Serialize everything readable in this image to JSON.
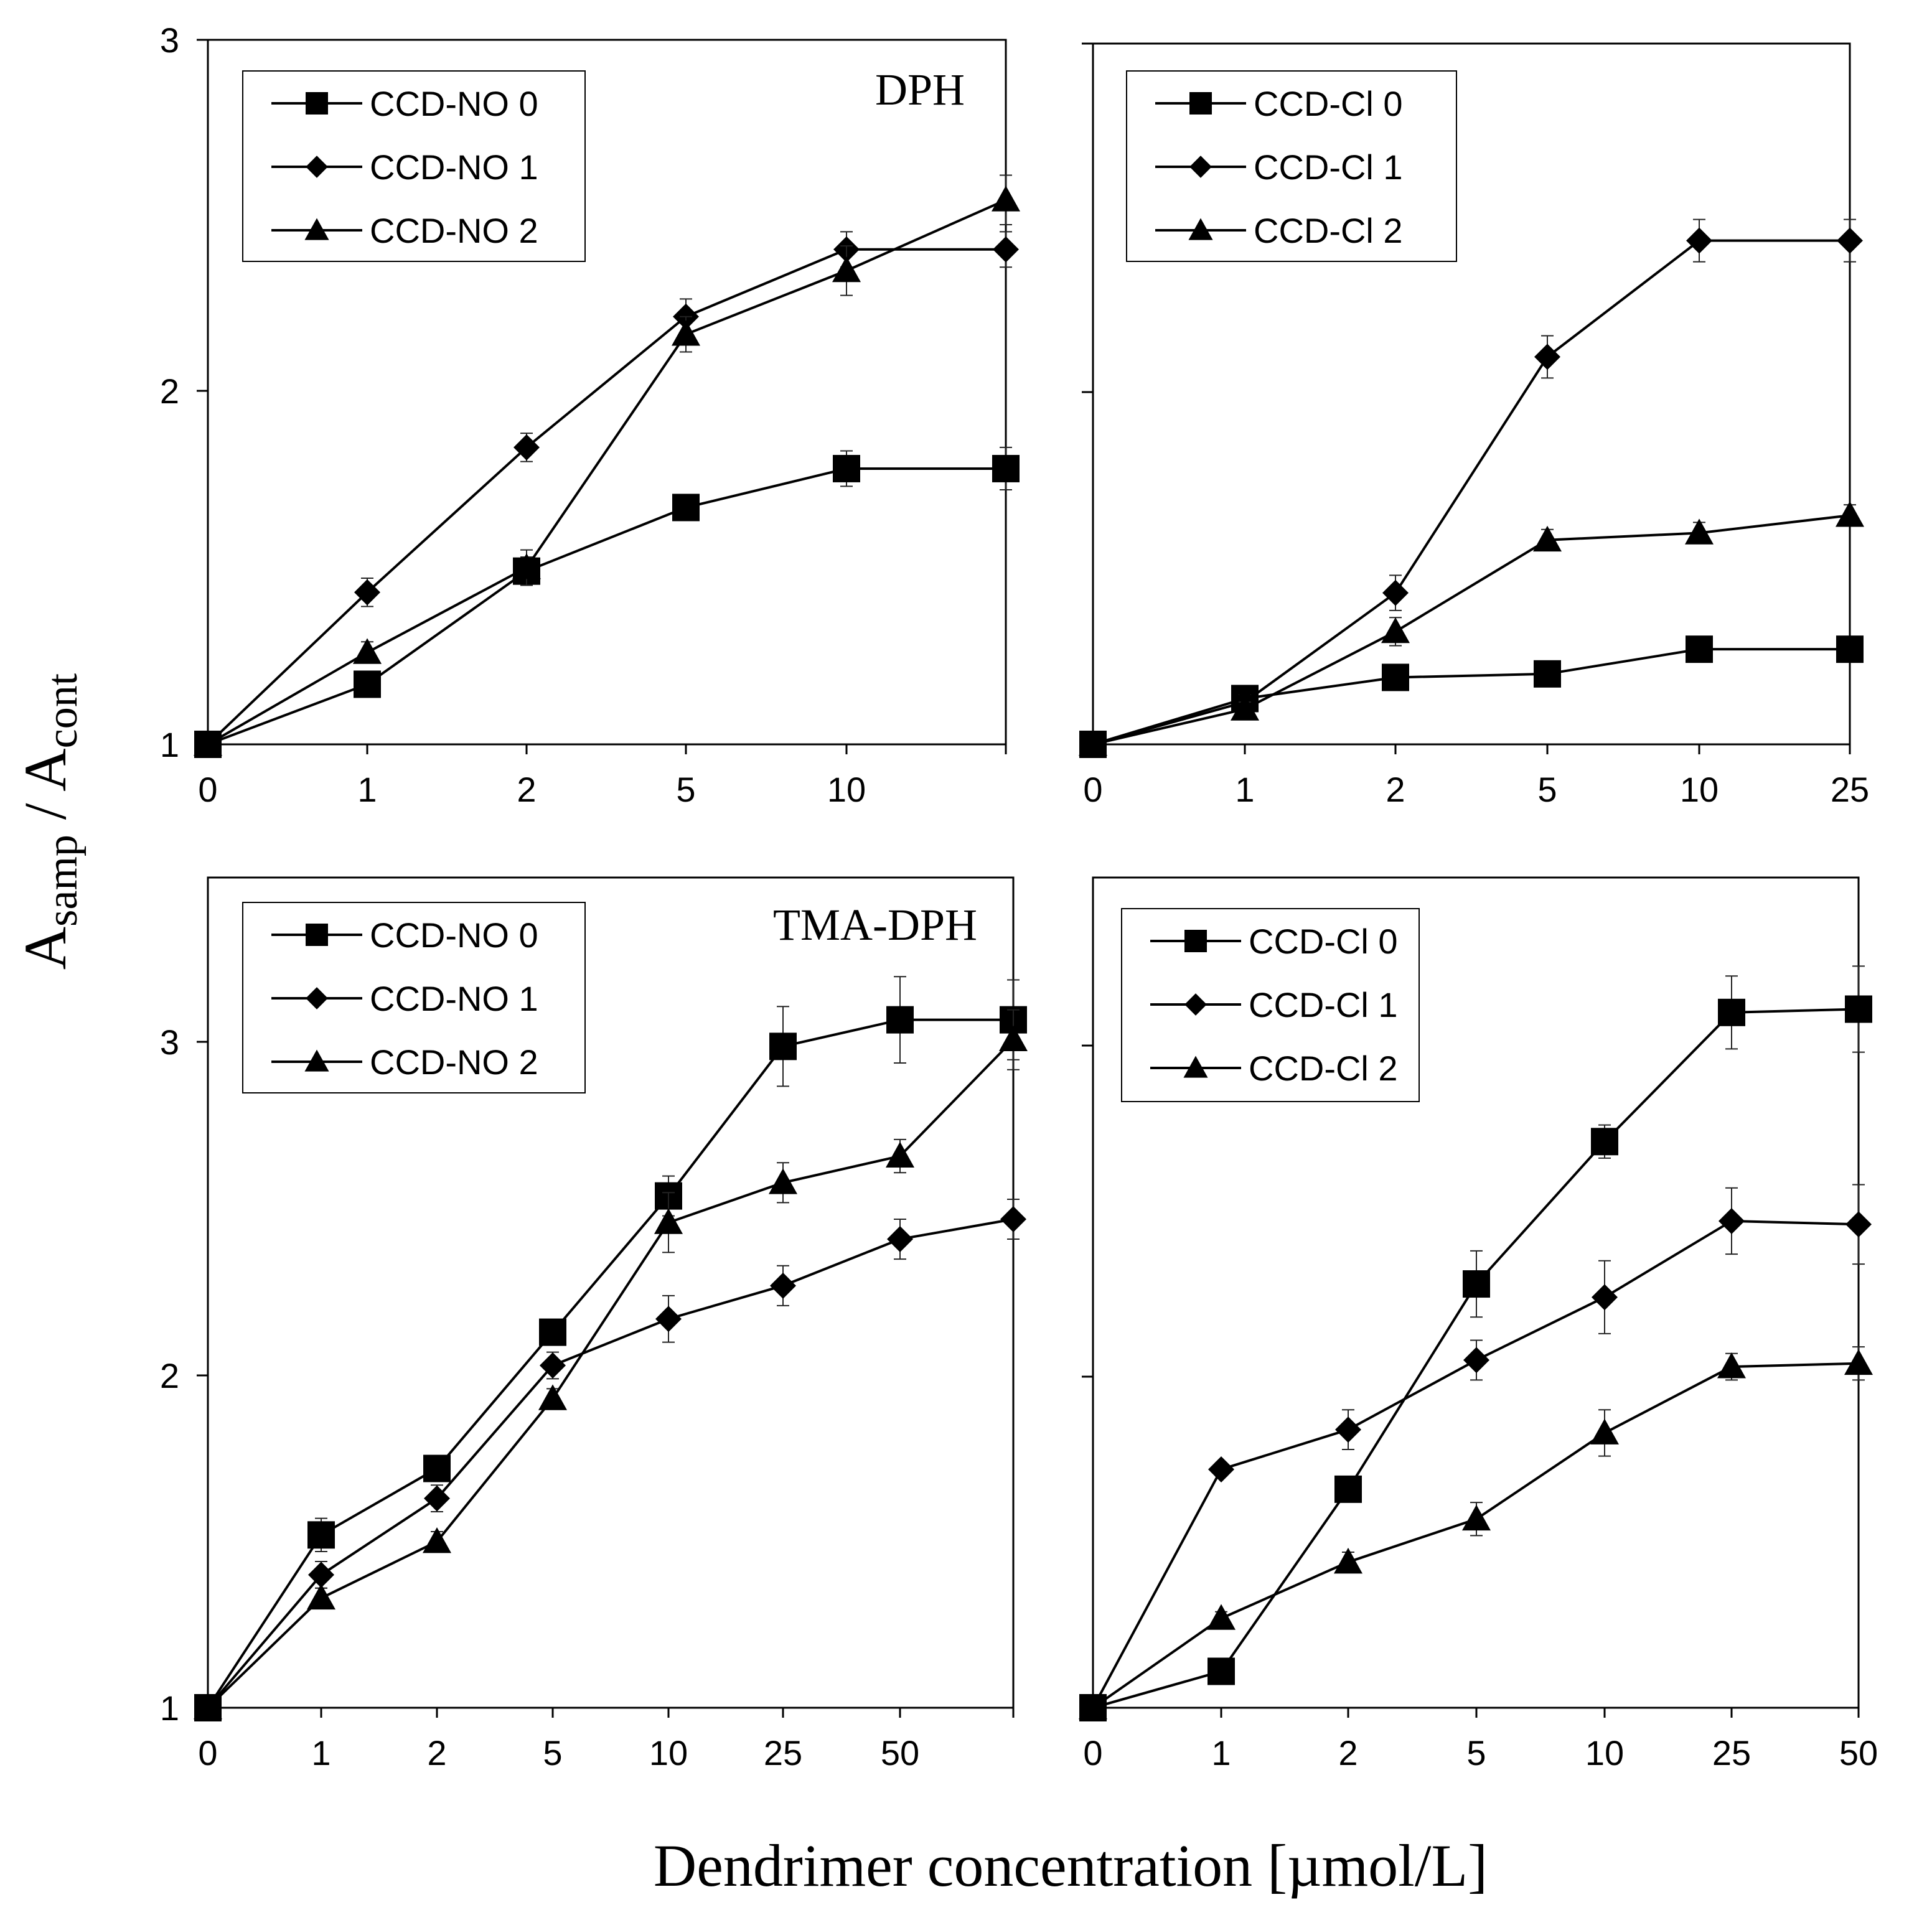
{
  "figure": {
    "ylabel_main": "A",
    "ylabel_sub1": "samp",
    "ylabel_sep": " / A",
    "ylabel_sub2": "cont",
    "xlabel": "Dendrimer concentration [µmol/L]"
  },
  "chart_data": [
    {
      "type": "line",
      "title": "DPH",
      "categories": [
        "0",
        "1",
        "2",
        "5",
        "10",
        ""
      ],
      "ylim": [
        1,
        3
      ],
      "yticks": [
        "1",
        "2",
        "3"
      ],
      "error_bars": true,
      "series": [
        {
          "name": "CCD-NO 0",
          "marker": "square",
          "values": [
            1.0,
            1.17,
            1.49,
            1.67,
            1.78,
            1.78
          ],
          "errors": [
            0,
            0.02,
            0.04,
            0.03,
            0.05,
            0.06
          ]
        },
        {
          "name": "CCD-NO 1",
          "marker": "diamond",
          "values": [
            1.0,
            1.43,
            1.84,
            2.21,
            2.4,
            2.4
          ],
          "errors": [
            0,
            0.04,
            0.04,
            0.05,
            0.05,
            0.05
          ]
        },
        {
          "name": "CCD-NO 2",
          "marker": "triangle",
          "values": [
            1.0,
            1.26,
            1.5,
            2.16,
            2.34,
            2.54
          ],
          "errors": [
            0,
            0.03,
            0.05,
            0.05,
            0.07,
            0.07
          ]
        }
      ]
    },
    {
      "type": "line",
      "title": "",
      "categories": [
        "0",
        "1",
        "2",
        "5",
        "10",
        "25"
      ],
      "ylim": [
        1,
        3
      ],
      "yticks": [
        "",
        "",
        ""
      ],
      "error_bars": true,
      "series": [
        {
          "name": "CCD-Cl 0",
          "marker": "square",
          "values": [
            1.0,
            1.13,
            1.19,
            1.2,
            1.27,
            1.27
          ],
          "errors": [
            0,
            0.02,
            0.02,
            0.02,
            0.02,
            0.02
          ]
        },
        {
          "name": "CCD-Cl 1",
          "marker": "diamond",
          "values": [
            1.0,
            1.12,
            1.43,
            2.1,
            2.43,
            2.43
          ],
          "errors": [
            0,
            0.02,
            0.05,
            0.06,
            0.06,
            0.06
          ]
        },
        {
          "name": "CCD-Cl 2",
          "marker": "triangle",
          "values": [
            1.0,
            1.1,
            1.32,
            1.58,
            1.6,
            1.65
          ],
          "errors": [
            0,
            0.02,
            0.04,
            0.03,
            0.03,
            0.03
          ]
        }
      ]
    },
    {
      "type": "line",
      "title": "TMA-DPH",
      "categories": [
        "0",
        "1",
        "2",
        "5",
        "10",
        "25",
        "50",
        ""
      ],
      "ylim": [
        1,
        3.5
      ],
      "yticks": [
        "1",
        "2",
        "3"
      ],
      "error_bars": true,
      "series": [
        {
          "name": "CCD-NO 0",
          "marker": "square",
          "values": [
            1.0,
            1.52,
            1.72,
            2.13,
            2.54,
            2.99,
            3.07,
            3.07
          ],
          "errors": [
            0,
            0.05,
            0.03,
            0.03,
            0.06,
            0.12,
            0.13,
            0.12
          ]
        },
        {
          "name": "CCD-NO 1",
          "marker": "diamond",
          "values": [
            1.0,
            1.4,
            1.63,
            2.03,
            2.17,
            2.27,
            2.41,
            2.47
          ],
          "errors": [
            0,
            0.04,
            0.04,
            0.04,
            0.07,
            0.06,
            0.06,
            0.06
          ]
        },
        {
          "name": "CCD-NO 2",
          "marker": "triangle",
          "values": [
            1.0,
            1.33,
            1.5,
            1.93,
            2.46,
            2.58,
            2.66,
            3.01
          ],
          "errors": [
            0,
            0.03,
            0.03,
            0.03,
            0.09,
            0.06,
            0.05,
            0.09
          ]
        }
      ]
    },
    {
      "type": "line",
      "title": "",
      "categories": [
        "0",
        "1",
        "2",
        "5",
        "10",
        "25",
        "50"
      ],
      "ylim": [
        1,
        3.5
      ],
      "yticks": [
        "",
        "",
        ""
      ],
      "error_bars": true,
      "series": [
        {
          "name": "CCD-Cl 0",
          "marker": "square",
          "values": [
            1.0,
            1.11,
            1.66,
            2.28,
            2.71,
            3.1,
            3.11
          ],
          "errors": [
            0,
            0.01,
            0.02,
            0.1,
            0.05,
            0.11,
            0.13
          ]
        },
        {
          "name": "CCD-Cl 1",
          "marker": "diamond",
          "values": [
            1.0,
            1.72,
            1.84,
            2.05,
            2.24,
            2.47,
            2.46
          ],
          "errors": [
            0,
            0.02,
            0.06,
            0.06,
            0.11,
            0.1,
            0.12
          ]
        },
        {
          "name": "CCD-Cl 2",
          "marker": "triangle",
          "values": [
            1.0,
            1.27,
            1.44,
            1.57,
            1.83,
            2.03,
            2.04
          ],
          "errors": [
            0,
            0.02,
            0.03,
            0.05,
            0.07,
            0.04,
            0.05
          ]
        }
      ]
    }
  ]
}
